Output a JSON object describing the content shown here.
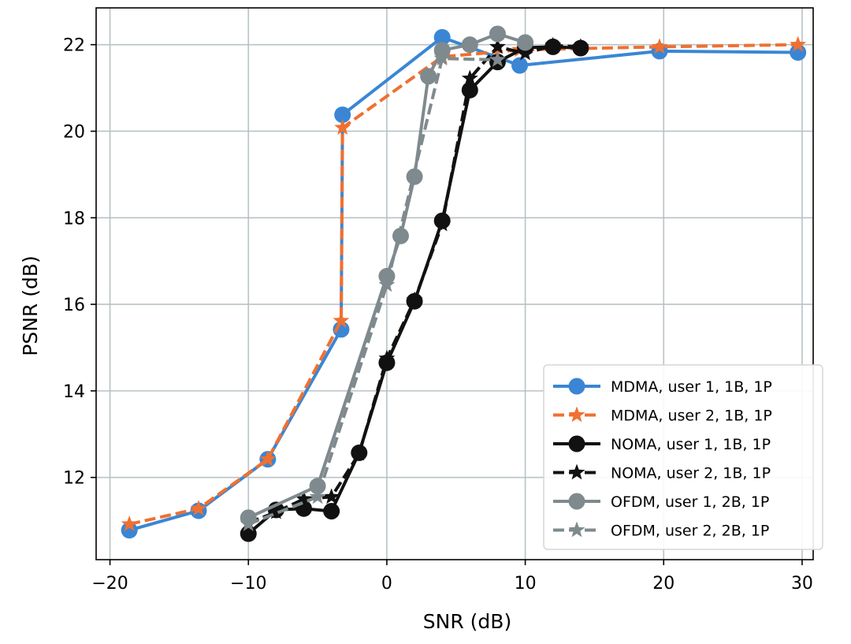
{
  "chart_data": {
    "type": "line",
    "title": "",
    "xlabel": "SNR (dB)",
    "ylabel": "PSNR (dB)",
    "xlim": [
      -21,
      30.8
    ],
    "ylim": [
      10.1,
      22.85
    ],
    "xticks": [
      -20,
      -10,
      0,
      10,
      20,
      30
    ],
    "xtick_labels": [
      "−20",
      "−10",
      "0",
      "10",
      "20",
      "30"
    ],
    "yticks": [
      12,
      14,
      16,
      18,
      20,
      22
    ],
    "ytick_labels": [
      "12",
      "14",
      "16",
      "18",
      "20",
      "22"
    ],
    "grid": true,
    "legend_position": "bottom-right",
    "series": [
      {
        "name": "MDMA, user 1, 1B, 1P",
        "color": "#3a86d4",
        "marker": "circle",
        "dashed": false,
        "x": [
          -18.6,
          -13.6,
          -8.6,
          -3.3,
          -3.2,
          4.0,
          9.6,
          19.7,
          29.7
        ],
        "y": [
          10.78,
          11.23,
          12.42,
          15.42,
          20.38,
          22.17,
          21.52,
          21.85,
          21.82
        ]
      },
      {
        "name": "MDMA, user 2, 1B, 1P",
        "color": "#f07030",
        "marker": "star",
        "dashed": true,
        "x": [
          -18.6,
          -13.6,
          -8.6,
          -3.3,
          -3.2,
          4.0,
          9.6,
          19.7,
          29.7
        ],
        "y": [
          10.92,
          11.28,
          12.42,
          15.62,
          20.08,
          21.72,
          21.88,
          21.95,
          22.0
        ]
      },
      {
        "name": "NOMA, user 1, 1B, 1P",
        "color": "#111111",
        "marker": "circle",
        "dashed": false,
        "x": [
          -10,
          -8,
          -6,
          -4,
          -2,
          0,
          2,
          4,
          6,
          8,
          10,
          12,
          14
        ],
        "y": [
          10.7,
          11.25,
          11.28,
          11.22,
          12.57,
          14.65,
          16.07,
          17.93,
          20.95,
          21.6,
          21.93,
          21.95,
          21.92
        ]
      },
      {
        "name": "NOMA, user 2, 1B, 1P",
        "color": "#111111",
        "marker": "star",
        "dashed": true,
        "x": [
          -10,
          -8,
          -6,
          -4,
          -2,
          0,
          2,
          4,
          6,
          8,
          10,
          12,
          14
        ],
        "y": [
          10.95,
          11.2,
          11.5,
          11.55,
          12.55,
          14.75,
          16.1,
          17.85,
          21.22,
          21.95,
          21.8,
          21.98,
          21.95
        ]
      },
      {
        "name": "OFDM, user 1, 2B, 1P",
        "color": "#7f8a8e",
        "marker": "circle",
        "dashed": false,
        "x": [
          -10,
          -5,
          0,
          1,
          2,
          3,
          4,
          6,
          8,
          10
        ],
        "y": [
          11.07,
          11.8,
          16.65,
          17.58,
          18.95,
          21.27,
          21.87,
          22.0,
          22.25,
          22.05
        ]
      },
      {
        "name": "OFDM, user 2, 2B, 1P",
        "color": "#7f8a8e",
        "marker": "star",
        "dashed": true,
        "x": [
          -10,
          -5,
          0,
          4,
          8
        ],
        "y": [
          10.92,
          11.55,
          16.45,
          21.68,
          21.65
        ]
      }
    ]
  }
}
